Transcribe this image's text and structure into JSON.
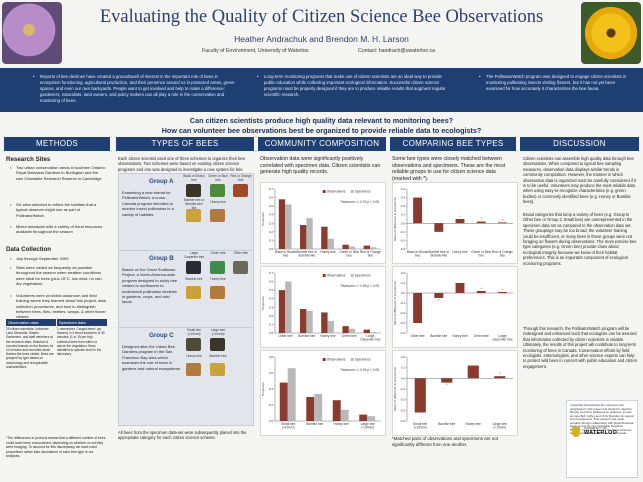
{
  "header": {
    "title": "Evaluating the Quality of Citizen Science Bee Observations",
    "authors": "Heather Andrachuk and Brendon M. H. Larson",
    "affiliation": "Faculty of Environment, University of Waterloo",
    "contact": "Contact: handrach@uwaterloo.ca"
  },
  "band": [
    "Reports of bee declines have created a groundswell of interest in the important role of bees in ecosystem functioning, agricultural production, and their presence around us in protected areas, green spaces, and even our own backyards. People want to get involved and help to make a difference: gardeners, naturalists, land owners, and policy makers can all play a role in the conservation and monitoring of bees.",
    "Long-term monitoring programs that make use of citizen scientists are an ideal way to provide public education while collecting important ecological information. Successful citizen science programs must be properly designed if they are to produce reliable results that augment regular scientific research.",
    "The PollinatorWatch program was designed to engage citizen scientists in monitoring pollinating insects visiting flowers, but it has not yet been examined for how accurately it characterizes the bee fauna."
  ],
  "questions": [
    "Can citizen scientists produce high quality data relevant to monitoring bees?",
    "How can volunteer bee observations best be organized to provide reliable data to ecologists?"
  ],
  "columns": [
    "METHODS",
    "TYPES OF BEES",
    "COMMUNITY COMPOSITION",
    "COMPARING BEE TYPES",
    "DISCUSSION"
  ],
  "methods": {
    "research_sites_title": "Research Sites",
    "research_sites": [
      "Two urban conservation areas in southern Ontario: Royal Botanical Gardens in Burlington and the rare Charitable Research Reserve in Cambridge",
      "Six sites selected to reflect the habitats that a typical observer might use as part of PollinatorWatch",
      "Mixed meadows with a variety of floral resources available throughout the season"
    ],
    "data_collection_title": "Data Collection",
    "data_collection": [
      "July through September 2009",
      "Sites were visited as frequently as possible throughout the season when weather conditions were ideal for bees (plus 15°C, low wind, no rain, dry vegetation)",
      "Volunteers were provided classroom and field training where they learned about this project, data collection procedures, and how to distinguish between bees, flies, beetles, wasps, & other flower visitors"
    ],
    "table": {
      "headers": [
        "Observation data",
        "Specimen data"
      ],
      "obs": "29 citizen scientists: Volunteer Land Stewards, Master Gardeners, and staff members at the research sites. Watched & counted insects on the flowers for 10 minutes and recorded which flowers the bees visited. Bees are grouped by type based on morphology and recognizable characteristics",
      "spec": "1 researcher. Caught bees* (on flowers) in 3 timed searches of 30 minutes. (1 to 15 per trip) collected bees from within or above the vegetation. Bees identified to species level in the laboratory"
    },
    "footnote": "*The differences in protocol means that a different number of bees could have been encountered, depending on whether or not they were foraging. To account for this discrepancy we have used proportions rather than abundance of each bee type in our analyses."
  },
  "types": {
    "intro": "Each citizen scientist used one of three schemes to organize their bee observations. Two schemes were based on existing citizen science programs and one was designed to investigate a new system for bee monitoring.",
    "groups": [
      {
        "title": "Group A",
        "text": "Examining a new format for PollinatorWatch, a cross-Canada program intended to monitor insect pollinators in a variety of habitats",
        "bees": [
          "Black or Brown bee",
          "Green or Blue bee",
          "Red or Orange bee",
          "Bumble bee or Bumble-bee like",
          "Honey bee"
        ]
      },
      {
        "title": "Group B",
        "text": "Based on the Great Sunflower Project, a North-America-wide program designed to study bee visitors to sunflowers to understand pollination declines in gardens, crops, and wild lands",
        "bees": [
          "Large Carpenter bee",
          "Green bee",
          "Other bee",
          "Bumble bee",
          "Honey bee"
        ]
      },
      {
        "title": "Group C",
        "text": "Designed after the Urban Bee Gardens program in the San Francisco Bay area which examines the role of bees in gardens and natural ecosystems",
        "bees": [
          "Small bee (<10mm)",
          "Large bee (>10mm)",
          "Honey bee",
          "Bumble bee"
        ]
      }
    ],
    "outro": "All bees from the specimen data-set were subsequently placed into the appropriate category for each citizen science scheme."
  },
  "community": {
    "intro": "Observation data were significantly positively correlated with specimen data. Citizen scientists can generate high quality records."
  },
  "comparing": {
    "intro": "Some bee types were closely matched between observations and specimens. These are the most reliable groups to use for citizen science data (marked with *).",
    "footnote": "*Matched pairs of observations and specimens are not significantly different from one another."
  },
  "discussion": {
    "p1": "Citizen scientists can assemble high quality data through bee observations. When compared to typical bee sampling measures, observation data displays similar trends in community composition. However, the manner in which observation data is organized must be carefully considered if it is to be useful. Volunteers may produce the most reliable data when using easy-to-recognize characteristics (e.g. green bodies) or commonly identified bees (e.g. Honey or Bumble bees).",
    "p2": "Broad categories that lump a variety of bees (e.g. Group B Other bee or Group C Small bee) are overrepresented in the specimen data set as compared to the observation data set. These groupings may be too broad, the volunteer training could be insufficient, or many bees in these groups were not foraging on flowers during observations. The more precise bee type categories (e.g. Green bee) provide clues about ecological integrity because we know of their habitat preferences. This is an important component of ecological monitoring programs.",
    "p3": "Through this research, the PollinatorWatch program will be redesigned and enhanced such that ecologists can be assured that information collected by citizen scientists is reliable. Ultimately, the results of this project will contribute to long-term monitoring of bees in Canada. Conservation efforts by field ecologists, entomologists, and other science experts can help to protect wild bees in concert with public education and citizen engagement.",
    "ack": "I gratefully acknowledge the volunteers who participated in this project and thank Drs. Stephen Murphy and Chris Wellstood for guidance, as well as Joan Bell, Jeffrey and Chris Sheriden for support & encouragement. This research was made possible through collaboration with Royal Botanical Gardens and the rare Charitable Research Reserve. It was supported by the Social Sciences and Humanities Research Council of Canada.",
    "logo": "WATERLOO",
    "logo_sub": "UNIVERSITY OF"
  },
  "chart_data": [
    {
      "type": "bar",
      "title": "",
      "ylabel": "Proportion",
      "categories": [
        "Black or Brown bee",
        "Bumble bee or Bumble-like bee",
        "Honey bee",
        "Green or Blue bee",
        "Red or Orange bee"
      ],
      "series": [
        {
          "name": "Observations",
          "values": [
            0.58,
            0.28,
            0.26,
            0.05,
            0.04
          ]
        },
        {
          "name": "Specimens",
          "values": [
            0.52,
            0.36,
            0.12,
            0.03,
            0.02
          ]
        }
      ],
      "ylim": [
        0,
        0.7
      ],
      "annotation": "Pearson's r = 0.93 p < 0.05"
    },
    {
      "type": "bar",
      "title": "",
      "ylabel": "Proportion",
      "categories": [
        "Other bee",
        "Bumble bee",
        "Honey bee",
        "Green bee",
        "Large Carpenter bee"
      ],
      "series": [
        {
          "name": "Observations",
          "values": [
            0.5,
            0.28,
            0.24,
            0.08,
            0.04
          ]
        },
        {
          "name": "Specimens",
          "values": [
            0.6,
            0.26,
            0.14,
            0.05,
            0.01
          ]
        }
      ],
      "ylim": [
        0,
        0.7
      ],
      "annotation": "Pearson's r = 0.96 p < 0.05"
    },
    {
      "type": "bar",
      "title": "",
      "ylabel": "Proportion",
      "categories": [
        "Small bee (<10mm)",
        "Bumble bee",
        "Honey bee",
        "Large bee (>10mm)"
      ],
      "series": [
        {
          "name": "Observations",
          "values": [
            0.48,
            0.3,
            0.26,
            0.08
          ]
        },
        {
          "name": "Specimens",
          "values": [
            0.66,
            0.34,
            0.14,
            0.06
          ]
        }
      ],
      "ylim": [
        0,
        0.8
      ],
      "annotation": "Pearson's r = 0.94 p < 0.05"
    },
    {
      "type": "bar",
      "title": "",
      "ylabel": "Mean of difference in proportions",
      "categories": [
        "Black or Brown bee",
        "Bumble bee or Bumble-like bee",
        "Honey bee",
        "Green or Blue bee",
        "Red or Orange bee"
      ],
      "values": [
        0.3,
        -0.1,
        0.05,
        0.02,
        0.01
      ],
      "reliable": [
        "",
        "",
        "*",
        "*",
        "*"
      ],
      "ylim": [
        -0.3,
        0.4
      ]
    },
    {
      "type": "bar",
      "title": "",
      "ylabel": "Mean of difference in proportions",
      "categories": [
        "Other bee",
        "Bumble bee",
        "Honey bee",
        "Green bee",
        "Large Carpenter bee"
      ],
      "values": [
        -0.3,
        -0.05,
        0.1,
        0.02,
        0.01
      ],
      "reliable": [
        "",
        "*",
        "",
        "*",
        "*"
      ],
      "ylim": [
        -0.4,
        0.2
      ]
    },
    {
      "type": "bar",
      "title": "",
      "ylabel": "Mean of difference in proportions",
      "categories": [
        "Small bee (<10mm)",
        "Bumble bee",
        "Honey bee",
        "Large bee (>10mm)"
      ],
      "values": [
        -0.32,
        -0.04,
        0.12,
        0.02
      ],
      "reliable": [
        "",
        "*",
        "",
        "*"
      ],
      "ylim": [
        -0.4,
        0.2
      ]
    }
  ],
  "colors": {
    "navy": "#1f3f72",
    "obs": "#8b3a2e",
    "spec": "#b8b8b8",
    "diff": "#8b3a2e"
  }
}
